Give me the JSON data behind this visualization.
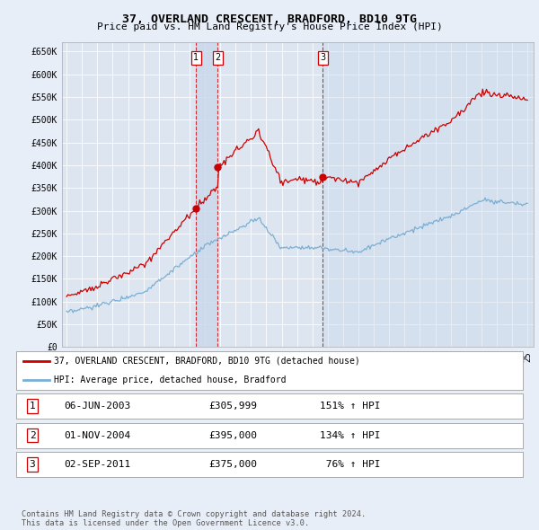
{
  "title": "37, OVERLAND CRESCENT, BRADFORD, BD10 9TG",
  "subtitle": "Price paid vs. HM Land Registry's House Price Index (HPI)",
  "background_color": "#e8eef8",
  "plot_bg_color": "#dde6f0",
  "legend_entries": [
    "37, OVERLAND CRESCENT, BRADFORD, BD10 9TG (detached house)",
    "HPI: Average price, detached house, Bradford"
  ],
  "table_rows": [
    [
      "1",
      "06-JUN-2003",
      "£305,999",
      "151% ↑ HPI"
    ],
    [
      "2",
      "01-NOV-2004",
      "£395,000",
      "134% ↑ HPI"
    ],
    [
      "3",
      "02-SEP-2011",
      "£375,000",
      " 76% ↑ HPI"
    ]
  ],
  "footer": "Contains HM Land Registry data © Crown copyright and database right 2024.\nThis data is licensed under the Open Government Licence v3.0.",
  "hpi_color": "#7bafd4",
  "sale_color": "#cc0000",
  "shade_color": "#c8d8ec",
  "ylim": [
    0,
    670000
  ],
  "yticks": [
    0,
    50000,
    100000,
    150000,
    200000,
    250000,
    300000,
    350000,
    400000,
    450000,
    500000,
    550000,
    600000,
    650000
  ],
  "ytick_labels": [
    "£0",
    "£50K",
    "£100K",
    "£150K",
    "£200K",
    "£250K",
    "£300K",
    "£350K",
    "£400K",
    "£450K",
    "£500K",
    "£550K",
    "£600K",
    "£650K"
  ],
  "sale_year_nums": [
    2003.44,
    2004.84,
    2011.67
  ],
  "sale_prices": [
    305999,
    395000,
    375000
  ],
  "sale_labels": [
    "1",
    "2",
    "3"
  ]
}
